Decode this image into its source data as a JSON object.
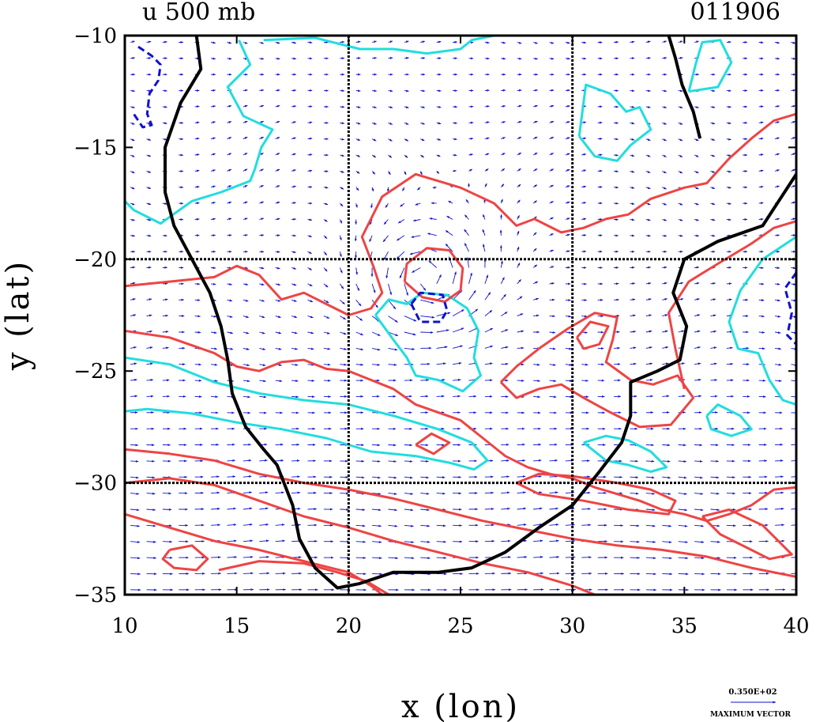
{
  "chart_data": {
    "type": "contour-vector",
    "title_left": "u 500 mb",
    "title_right": "011906",
    "xlabel": "x (lon)",
    "ylabel": "y (lat)",
    "xlim": [
      10,
      40
    ],
    "ylim": [
      -35,
      -10
    ],
    "x_ticks": [
      "10",
      "15",
      "20",
      "25",
      "30",
      "35",
      "40"
    ],
    "y_ticks": [
      "-10",
      "-15",
      "-20",
      "-25",
      "-30",
      "-35"
    ],
    "gridlines": {
      "x": [
        20,
        30
      ],
      "y": [
        -20,
        -30
      ]
    },
    "vector_legend": {
      "value": "0.350E+02",
      "label": "MAXIMUM VECTOR"
    },
    "colors": {
      "positive": "#ee4444",
      "zero": "#22dddd",
      "negative": "#1111cc",
      "coast": "#000000",
      "vector": "#1111cc"
    },
    "coastline": [
      [
        13.2,
        -10
      ],
      [
        13.4,
        -11.5
      ],
      [
        12.5,
        -13
      ],
      [
        11.8,
        -15
      ],
      [
        11.8,
        -17
      ],
      [
        12.2,
        -18.5
      ],
      [
        13,
        -20
      ],
      [
        13.8,
        -21.5
      ],
      [
        14.3,
        -23
      ],
      [
        14.6,
        -24.5
      ],
      [
        14.8,
        -26
      ],
      [
        15.4,
        -27.5
      ],
      [
        16.2,
        -28.5
      ],
      [
        16.8,
        -29.2
      ],
      [
        17.5,
        -31
      ],
      [
        17.8,
        -32.5
      ],
      [
        18.5,
        -33.8
      ],
      [
        19.5,
        -34.7
      ],
      [
        20.5,
        -34.5
      ],
      [
        22,
        -34
      ],
      [
        24,
        -34
      ],
      [
        25.5,
        -33.8
      ],
      [
        27,
        -33.1
      ],
      [
        28.5,
        -32
      ],
      [
        30,
        -31
      ],
      [
        31.2,
        -29.5
      ],
      [
        32.2,
        -28.2
      ],
      [
        32.6,
        -27
      ],
      [
        32.6,
        -25.5
      ],
      [
        33.8,
        -25
      ],
      [
        34.8,
        -24.5
      ],
      [
        35.1,
        -23
      ],
      [
        34.5,
        -21.5
      ],
      [
        35,
        -20
      ],
      [
        36.5,
        -19.2
      ],
      [
        38.5,
        -18.5
      ],
      [
        40,
        -16.2
      ]
    ],
    "coastline2": [
      [
        34.3,
        -10
      ],
      [
        34.6,
        -11
      ],
      [
        34.9,
        -12.2
      ],
      [
        35.4,
        -13.4
      ],
      [
        35.7,
        -14.6
      ]
    ],
    "contours_positive": [
      [
        [
          10,
          -21.2
        ],
        [
          12,
          -21
        ],
        [
          14,
          -20.8
        ],
        [
          15,
          -20.3
        ],
        [
          16,
          -20.7
        ],
        [
          17,
          -21.8
        ],
        [
          18,
          -21.5
        ],
        [
          19,
          -22
        ],
        [
          20,
          -22.5
        ],
        [
          21,
          -22.2
        ],
        [
          21.5,
          -21.5
        ],
        [
          21.1,
          -20.3
        ],
        [
          20.6,
          -19
        ],
        [
          21.5,
          -17.2
        ],
        [
          23,
          -16.2
        ],
        [
          25,
          -16.8
        ],
        [
          26.5,
          -17.5
        ],
        [
          27.5,
          -18.5
        ],
        [
          28.3,
          -18.2
        ],
        [
          29.5,
          -18.8
        ],
        [
          30.5,
          -18.6
        ],
        [
          31.5,
          -18.2
        ],
        [
          32.5,
          -18
        ],
        [
          33.5,
          -17.3
        ],
        [
          35,
          -16.8
        ],
        [
          36,
          -16.6
        ],
        [
          37,
          -15.5
        ],
        [
          38,
          -14.6
        ],
        [
          39,
          -13.8
        ],
        [
          40,
          -13.5
        ]
      ],
      [
        [
          10,
          -23.2
        ],
        [
          12,
          -23.5
        ],
        [
          14,
          -24.2
        ],
        [
          15,
          -24.8
        ],
        [
          16,
          -25
        ],
        [
          17,
          -24.6
        ],
        [
          18,
          -24.5
        ],
        [
          19,
          -24.9
        ],
        [
          20,
          -25
        ],
        [
          21,
          -25.4
        ],
        [
          22,
          -25.8
        ],
        [
          23,
          -26.5
        ],
        [
          25,
          -27.2
        ],
        [
          26,
          -28
        ],
        [
          27,
          -28.8
        ],
        [
          28,
          -29.3
        ],
        [
          29,
          -29.6
        ],
        [
          30,
          -29.8
        ],
        [
          31,
          -30.2
        ],
        [
          32,
          -30.5
        ],
        [
          33,
          -30.8
        ],
        [
          34,
          -31.2
        ],
        [
          35,
          -31.4
        ],
        [
          36,
          -31.7
        ],
        [
          37,
          -31.4
        ],
        [
          38,
          -31
        ],
        [
          39,
          -30.3
        ],
        [
          40,
          -30.2
        ]
      ],
      [
        [
          10,
          -28.5
        ],
        [
          12,
          -28.7
        ],
        [
          14,
          -29
        ],
        [
          16,
          -29.6
        ],
        [
          18,
          -30
        ],
        [
          20,
          -30.3
        ],
        [
          22,
          -30.7
        ],
        [
          24,
          -31.2
        ],
        [
          26,
          -31.7
        ],
        [
          28,
          -32.1
        ],
        [
          30,
          -32.5
        ],
        [
          32,
          -32.8
        ],
        [
          34,
          -33
        ],
        [
          36,
          -33.3
        ],
        [
          38,
          -33.8
        ],
        [
          40,
          -34.2
        ]
      ],
      [
        [
          10,
          -30
        ],
        [
          12,
          -29.8
        ],
        [
          14,
          -30.1
        ],
        [
          16,
          -30.8
        ],
        [
          18,
          -31.5
        ],
        [
          20,
          -32
        ],
        [
          22,
          -32.6
        ],
        [
          24,
          -33.1
        ],
        [
          26,
          -33.6
        ],
        [
          28,
          -34
        ],
        [
          30,
          -34.6
        ],
        [
          31,
          -35
        ]
      ],
      [
        [
          10,
          -31.4
        ],
        [
          12,
          -32
        ],
        [
          14,
          -32.6
        ],
        [
          16,
          -33
        ],
        [
          18,
          -33.5
        ],
        [
          20,
          -34
        ],
        [
          21,
          -34.6
        ],
        [
          21.5,
          -35
        ]
      ],
      [
        [
          14.2,
          -33.9
        ],
        [
          16,
          -33.5
        ],
        [
          18,
          -33.6
        ],
        [
          19.5,
          -34
        ],
        [
          20.8,
          -34.4
        ],
        [
          21.8,
          -35
        ]
      ],
      [
        [
          12,
          -33
        ],
        [
          13,
          -32.8
        ],
        [
          13.7,
          -33.4
        ],
        [
          13.2,
          -33.9
        ],
        [
          12.2,
          -33.8
        ],
        [
          11.7,
          -33.4
        ],
        [
          12,
          -33
        ]
      ],
      [
        [
          22.5,
          -21
        ],
        [
          22.6,
          -20.2
        ],
        [
          23.5,
          -19.5
        ],
        [
          24.5,
          -19.6
        ],
        [
          25.1,
          -20.4
        ],
        [
          25,
          -21.4
        ],
        [
          24.3,
          -21.9
        ],
        [
          23.3,
          -21.7
        ],
        [
          22.5,
          -21
        ]
      ],
      [
        [
          23,
          -28.3
        ],
        [
          23.7,
          -27.8
        ],
        [
          24.5,
          -28.2
        ],
        [
          23.8,
          -28.7
        ],
        [
          23,
          -28.3
        ]
      ],
      [
        [
          27.5,
          -30
        ],
        [
          28.5,
          -29.6
        ],
        [
          30,
          -29.7
        ],
        [
          32,
          -30
        ],
        [
          33.5,
          -30.3
        ],
        [
          34.6,
          -30.8
        ],
        [
          34.3,
          -31.4
        ],
        [
          32.5,
          -31.2
        ],
        [
          30.5,
          -30.8
        ],
        [
          28.5,
          -30.5
        ],
        [
          27.5,
          -30
        ]
      ],
      [
        [
          26.8,
          -25.5
        ],
        [
          27.5,
          -24.8
        ],
        [
          28.5,
          -24
        ],
        [
          29.8,
          -23.1
        ],
        [
          31,
          -22.4
        ],
        [
          32,
          -22.6
        ],
        [
          31.8,
          -23.6
        ],
        [
          31.5,
          -24.6
        ],
        [
          32.6,
          -25.4
        ],
        [
          33.6,
          -25.6
        ],
        [
          34.7,
          -25.2
        ],
        [
          35.4,
          -26.2
        ],
        [
          34.4,
          -27.4
        ],
        [
          33,
          -27.5
        ],
        [
          31.6,
          -26.8
        ],
        [
          30.5,
          -26.2
        ],
        [
          29.5,
          -25.6
        ],
        [
          28.5,
          -25.8
        ],
        [
          27.5,
          -26.2
        ],
        [
          26.8,
          -25.5
        ]
      ],
      [
        [
          35,
          -25.8
        ],
        [
          34.6,
          -24
        ],
        [
          34.3,
          -22.4
        ],
        [
          35.2,
          -21
        ],
        [
          36.5,
          -20.2
        ],
        [
          38,
          -19.3
        ],
        [
          39,
          -18.6
        ],
        [
          40,
          -18.3
        ]
      ],
      [
        [
          30.2,
          -23.5
        ],
        [
          30.8,
          -22.8
        ],
        [
          31.6,
          -23
        ],
        [
          31.2,
          -23.8
        ],
        [
          30.5,
          -24
        ],
        [
          30.2,
          -23.5
        ]
      ],
      [
        [
          35.8,
          -31.5
        ],
        [
          37,
          -31.2
        ],
        [
          38.5,
          -31.9
        ],
        [
          39.2,
          -32.6
        ],
        [
          39.8,
          -33.2
        ],
        [
          38.8,
          -33.4
        ],
        [
          37.8,
          -32.9
        ],
        [
          36.6,
          -32.3
        ],
        [
          35.8,
          -31.5
        ]
      ]
    ],
    "contours_zero": [
      [
        [
          15.1,
          -10.2
        ],
        [
          15.6,
          -11.3
        ],
        [
          14.6,
          -12.3
        ],
        [
          15.3,
          -13.6
        ],
        [
          16.6,
          -14.2
        ],
        [
          16.1,
          -15
        ],
        [
          15.8,
          -16
        ],
        [
          15.6,
          -16.5
        ],
        [
          14.3,
          -17
        ],
        [
          13,
          -17.4
        ],
        [
          11.6,
          -18.4
        ],
        [
          10.4,
          -17.8
        ],
        [
          10,
          -17.4
        ]
      ],
      [
        [
          16.2,
          -10.2
        ],
        [
          18.5,
          -10.1
        ],
        [
          20.5,
          -10.6
        ],
        [
          22,
          -10.6
        ],
        [
          23.5,
          -10.8
        ],
        [
          25,
          -10.6
        ],
        [
          25.5,
          -10.2
        ],
        [
          26.5,
          -10
        ]
      ],
      [
        [
          10,
          -24.4
        ],
        [
          12,
          -24.7
        ],
        [
          14,
          -25.5
        ],
        [
          16,
          -26
        ],
        [
          18,
          -26.3
        ],
        [
          20,
          -26.5
        ],
        [
          22,
          -27
        ],
        [
          24,
          -27.6
        ],
        [
          25.5,
          -28.2
        ],
        [
          26.2,
          -29
        ],
        [
          25.6,
          -29.4
        ],
        [
          24.5,
          -29.1
        ],
        [
          23,
          -28.8
        ],
        [
          21,
          -28.6
        ],
        [
          19,
          -28
        ],
        [
          17,
          -27.6
        ],
        [
          15,
          -27.3
        ],
        [
          13,
          -26.9
        ],
        [
          11,
          -26.7
        ],
        [
          10,
          -26.8
        ]
      ],
      [
        [
          21.2,
          -22.5
        ],
        [
          21.8,
          -21.8
        ],
        [
          22.6,
          -22
        ],
        [
          23.3,
          -21.5
        ],
        [
          24.4,
          -21.6
        ],
        [
          25.3,
          -22.2
        ],
        [
          25.8,
          -23.2
        ],
        [
          25.6,
          -24.4
        ],
        [
          25.9,
          -25.2
        ],
        [
          25.1,
          -25.9
        ],
        [
          24,
          -25.4
        ],
        [
          23,
          -25.2
        ],
        [
          22.6,
          -24.4
        ],
        [
          22,
          -23.6
        ],
        [
          21.2,
          -22.5
        ]
      ],
      [
        [
          30.3,
          -14.5
        ],
        [
          30.6,
          -12.2
        ],
        [
          31.7,
          -12.6
        ],
        [
          32.4,
          -13.4
        ],
        [
          33,
          -13.2
        ],
        [
          33.5,
          -14.2
        ],
        [
          32.6,
          -14.9
        ],
        [
          32,
          -15.6
        ],
        [
          31,
          -15.4
        ],
        [
          30.3,
          -14.5
        ]
      ],
      [
        [
          35.2,
          -12.5
        ],
        [
          35.5,
          -11.3
        ],
        [
          35.8,
          -10.3
        ],
        [
          36.6,
          -10.2
        ],
        [
          37.1,
          -11.2
        ],
        [
          36.5,
          -12.3
        ],
        [
          35.2,
          -12.5
        ]
      ],
      [
        [
          40,
          -19
        ],
        [
          38.5,
          -20
        ],
        [
          37.5,
          -21.4
        ],
        [
          37,
          -22.8
        ],
        [
          37.4,
          -24
        ],
        [
          38.3,
          -24.2
        ],
        [
          38.8,
          -25.4
        ],
        [
          39.4,
          -26.3
        ],
        [
          40,
          -26.5
        ]
      ],
      [
        [
          30.5,
          -28.2
        ],
        [
          31.5,
          -27.9
        ],
        [
          32.5,
          -28.1
        ],
        [
          33.5,
          -28.6
        ],
        [
          34.2,
          -29.3
        ],
        [
          33.5,
          -29.5
        ],
        [
          32.5,
          -29.2
        ],
        [
          31.5,
          -29
        ],
        [
          30.5,
          -28.2
        ]
      ],
      [
        [
          36,
          -27
        ],
        [
          36.5,
          -26.5
        ],
        [
          37.5,
          -27
        ],
        [
          38,
          -27.6
        ],
        [
          37.1,
          -27.9
        ],
        [
          36.2,
          -27.6
        ],
        [
          36,
          -27
        ]
      ]
    ],
    "contours_negative": [
      [
        [
          10.6,
          -10.5
        ],
        [
          11.2,
          -10.9
        ],
        [
          11.6,
          -11.3
        ],
        [
          11.5,
          -12
        ],
        [
          11.1,
          -12.6
        ],
        [
          11,
          -13.5
        ],
        [
          11.2,
          -14
        ],
        [
          10.8,
          -14.1
        ],
        [
          10.4,
          -13.5
        ]
      ],
      [
        [
          22.8,
          -22
        ],
        [
          23.2,
          -21.5
        ],
        [
          24.2,
          -21.6
        ],
        [
          24.4,
          -22.3
        ],
        [
          24.1,
          -22.8
        ],
        [
          23.2,
          -22.8
        ],
        [
          22.8,
          -22
        ]
      ],
      [
        [
          40,
          -20.6
        ],
        [
          39.5,
          -21.3
        ],
        [
          39.8,
          -22.4
        ],
        [
          39.6,
          -23.4
        ],
        [
          40,
          -23.8
        ]
      ]
    ]
  }
}
